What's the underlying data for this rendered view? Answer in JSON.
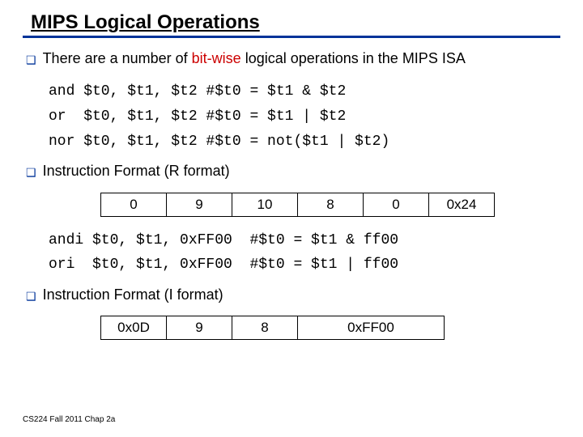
{
  "title": {
    "full": "MIPS Logical Operations",
    "prefix": "MIPS Lo",
    "mid": "g",
    "suffix": "ical Operations"
  },
  "intro": {
    "text_before_red": "There are a number of ",
    "text_red": "bit-wise",
    "text_after_red": " logical operations in the MIPS ISA"
  },
  "r_examples": {
    "and": "and $t0, $t1, $t2 #$t0 = $t1 & $t2",
    "or": "or  $t0, $t1, $t2 #$t0 = $t1 | $t2",
    "nor": "nor $t0, $t1, $t2 #$t0 = not($t1 | $t2)"
  },
  "r_format_label": "Instruction Format (R format)",
  "r_format_cells": [
    "0",
    "9",
    "10",
    "8",
    "0",
    "0x24"
  ],
  "i_examples": {
    "andi": "andi $t0, $t1, 0xFF00  #$t0 = $t1 & ff00",
    "ori": "ori  $t0, $t1, 0xFF00  #$t0 = $t1 | ff00"
  },
  "i_format_label": "Instruction Format (I format)",
  "i_format_cells": [
    "0x0D",
    "9",
    "8",
    "0xFF00"
  ],
  "bullet_glyph": "❑",
  "footer": "CS224 Fall 2011 Chap 2a",
  "colors": {
    "accent": "#003399",
    "red": "#cc0000",
    "text": "#000000",
    "bg": "#ffffff"
  }
}
